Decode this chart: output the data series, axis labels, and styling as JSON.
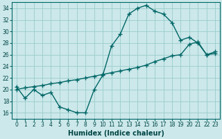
{
  "xlabel": "Humidex (Indice chaleur)",
  "background_color": "#cce8ea",
  "grid_color": "#99cccc",
  "line_color": "#006666",
  "xlim": [
    -0.5,
    23.5
  ],
  "ylim": [
    15,
    35
  ],
  "yticks": [
    16,
    18,
    20,
    22,
    24,
    26,
    28,
    30,
    32,
    34
  ],
  "xticks": [
    0,
    1,
    2,
    3,
    4,
    5,
    6,
    7,
    8,
    9,
    10,
    11,
    12,
    13,
    14,
    15,
    16,
    17,
    18,
    19,
    20,
    21,
    22,
    23
  ],
  "series1_x": [
    0,
    1,
    2,
    3,
    4,
    5,
    6,
    7,
    8,
    9,
    10,
    11,
    12,
    13,
    14,
    15,
    16,
    17,
    18,
    19,
    20,
    21,
    22,
    23
  ],
  "series1_y": [
    20.5,
    18.5,
    20.0,
    19.0,
    19.5,
    17.0,
    16.5,
    16.0,
    16.0,
    20.0,
    22.5,
    27.5,
    29.5,
    33.0,
    34.0,
    34.5,
    33.5,
    33.0,
    31.5,
    28.5,
    29.0,
    28.0,
    26.0,
    26.5
  ],
  "series2_x": [
    0,
    1,
    2,
    3,
    4,
    5,
    6,
    7,
    8,
    9,
    10,
    11,
    12,
    13,
    14,
    15,
    16,
    17,
    18,
    19,
    20,
    21,
    22,
    23
  ],
  "series2_y": [
    20.0,
    20.3,
    20.5,
    20.7,
    21.0,
    21.2,
    21.5,
    21.7,
    22.0,
    22.3,
    22.6,
    22.9,
    23.2,
    23.5,
    23.8,
    24.2,
    24.8,
    25.3,
    25.8,
    26.0,
    27.8,
    28.2,
    26.0,
    26.2
  ],
  "marker": "+",
  "markersize": 4,
  "linewidth": 1.0,
  "font_color": "#004444",
  "tick_fontsize": 5.5,
  "label_fontsize": 7
}
